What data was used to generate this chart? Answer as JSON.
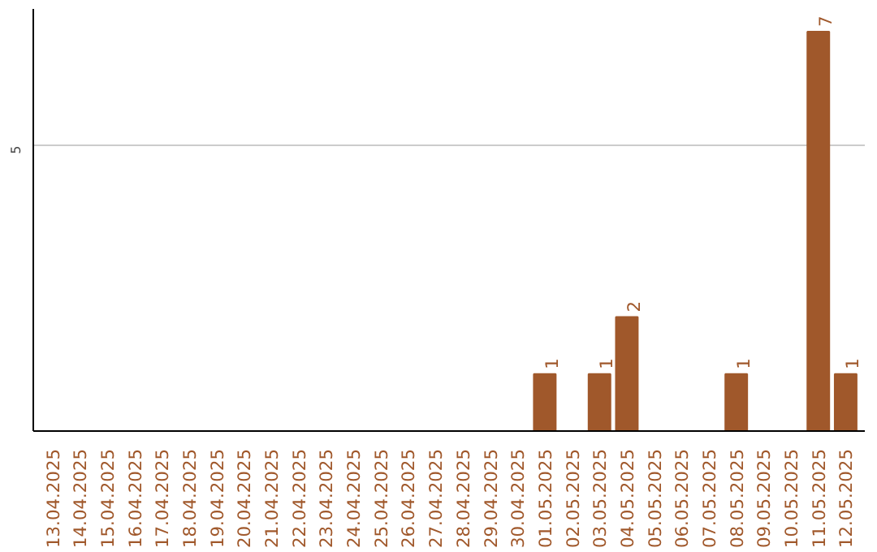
{
  "chart_data": {
    "type": "bar",
    "categories": [
      "13.04.2025",
      "14.04.2025",
      "15.04.2025",
      "16.04.2025",
      "17.04.2025",
      "18.04.2025",
      "19.04.2025",
      "20.04.2025",
      "21.04.2025",
      "22.04.2025",
      "23.04.2025",
      "24.04.2025",
      "25.04.2025",
      "26.04.2025",
      "27.04.2025",
      "28.04.2025",
      "29.04.2025",
      "30.04.2025",
      "01.05.2025",
      "02.05.2025",
      "03.05.2025",
      "04.05.2025",
      "05.05.2025",
      "06.05.2025",
      "07.05.2025",
      "08.05.2025",
      "09.05.2025",
      "10.05.2025",
      "11.05.2025",
      "12.05.2025"
    ],
    "values": [
      null,
      null,
      null,
      null,
      null,
      null,
      null,
      null,
      null,
      null,
      null,
      null,
      null,
      null,
      null,
      null,
      null,
      null,
      1,
      null,
      1,
      2,
      null,
      null,
      null,
      1,
      null,
      null,
      7,
      1
    ],
    "color": "#a0582b",
    "ylim": [
      0,
      7.4
    ],
    "yticks": [
      5
    ],
    "grid": "y",
    "data_labels": true
  }
}
